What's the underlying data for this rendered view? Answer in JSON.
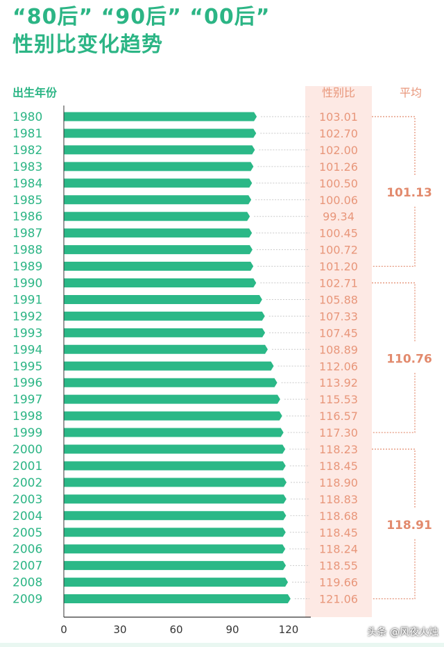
{
  "title": {
    "line1": "“80后” “90后” “00后”",
    "line2": "性别比变化趋势"
  },
  "footer": {
    "watermark": "头条 @风夜火烛"
  },
  "colors": {
    "bar": "#2bb887",
    "label": "#e8967a",
    "panel": "#fde9e4",
    "year": "#2cb585",
    "avg": "#e28a6d"
  },
  "chart_data": {
    "type": "bar",
    "orientation": "horizontal",
    "col_year_label": "出生年份",
    "col_value_label": "性别比",
    "col_avg_label": "平均",
    "categories": [
      "1980",
      "1981",
      "1982",
      "1983",
      "1984",
      "1985",
      "1986",
      "1987",
      "1988",
      "1989",
      "1990",
      "1991",
      "1992",
      "1993",
      "1994",
      "1995",
      "1996",
      "1997",
      "1998",
      "1999",
      "2000",
      "2001",
      "2002",
      "2003",
      "2004",
      "2005",
      "2006",
      "2007",
      "2008",
      "2009"
    ],
    "values": [
      103.01,
      102.7,
      102.0,
      101.26,
      100.5,
      100.06,
      99.34,
      100.45,
      100.72,
      101.2,
      102.71,
      105.88,
      107.33,
      107.45,
      108.89,
      112.06,
      113.92,
      115.53,
      116.57,
      117.3,
      118.23,
      118.45,
      118.9,
      118.83,
      118.68,
      118.45,
      118.24,
      118.55,
      119.66,
      121.06
    ],
    "value_labels": [
      "103.01",
      "102.70",
      "102.00",
      "101.26",
      "100.50",
      "100.06",
      "99.34",
      "100.45",
      "100.72",
      "101.20",
      "102.71",
      "105.88",
      "107.33",
      "107.45",
      "108.89",
      "112.06",
      "113.92",
      "115.53",
      "116.57",
      "117.30",
      "118.23",
      "118.45",
      "118.90",
      "118.83",
      "118.68",
      "118.45",
      "118.24",
      "118.55",
      "119.66",
      "121.06"
    ],
    "xticks": [
      "0",
      "30",
      "60",
      "90",
      "120"
    ],
    "xtick_values": [
      0,
      30,
      60,
      90,
      120
    ],
    "xlim": [
      0,
      120
    ],
    "averages": [
      {
        "label": "101.13",
        "from": 0,
        "to": 9
      },
      {
        "label": "110.76",
        "from": 10,
        "to": 19
      },
      {
        "label": "118.91",
        "from": 20,
        "to": 29
      }
    ]
  }
}
